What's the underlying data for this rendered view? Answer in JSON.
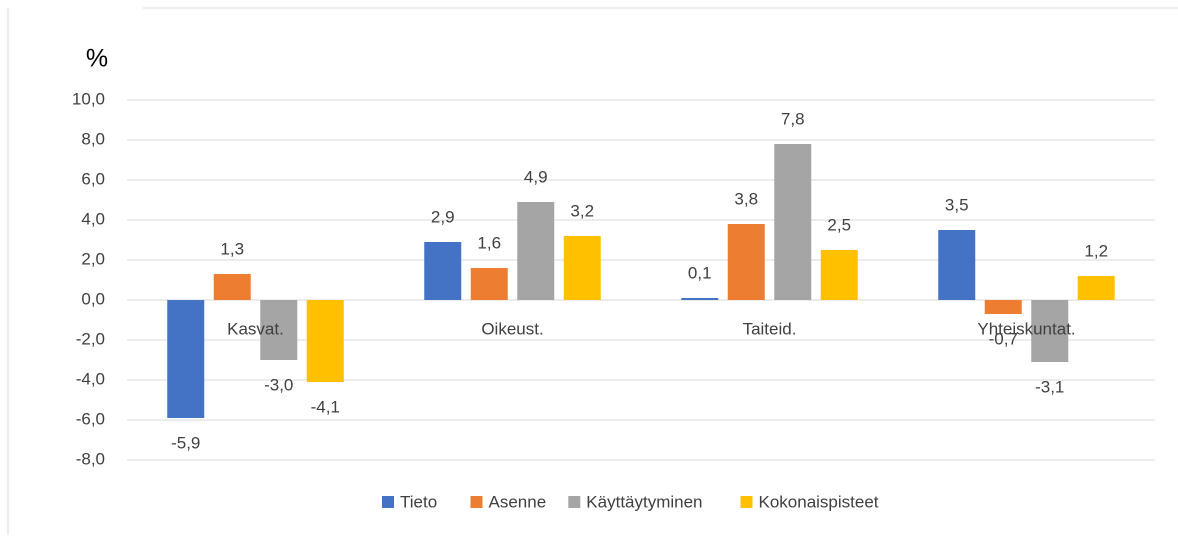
{
  "chart_data": {
    "type": "bar",
    "ylabel": "%",
    "categories": [
      "Kasvat.",
      "Oikeust.",
      "Taiteid.",
      "Yhteiskuntat."
    ],
    "series": [
      {
        "name": "Tieto",
        "color": "#4472c4",
        "values": [
          -5.9,
          2.9,
          0.1,
          3.5
        ],
        "value_labels": [
          "-5,9",
          "2,9",
          "0,1",
          "3,5"
        ]
      },
      {
        "name": "Asenne",
        "color": "#ed7d31",
        "values": [
          1.3,
          1.6,
          3.8,
          -0.7
        ],
        "value_labels": [
          "1,3",
          "1,6",
          "3,8",
          "-0,7"
        ]
      },
      {
        "name": "Käyttäytyminen",
        "color": "#a5a5a5",
        "values": [
          -3.0,
          4.9,
          7.8,
          -3.1
        ],
        "value_labels": [
          "-3,0",
          "4,9",
          "7,8",
          "-3,1"
        ]
      },
      {
        "name": "Kokonaispisteet",
        "color": "#ffc000",
        "values": [
          -4.1,
          3.2,
          2.5,
          1.2
        ],
        "value_labels": [
          "-4,1",
          "3,2",
          "2,5",
          "1,2"
        ]
      }
    ],
    "ylim": [
      -8,
      10
    ],
    "yticks": [
      {
        "value": -8,
        "label": "-8,0"
      },
      {
        "value": -6,
        "label": "-6,0"
      },
      {
        "value": -4,
        "label": "-4,0"
      },
      {
        "value": -2,
        "label": "-2,0"
      },
      {
        "value": 0,
        "label": "0,0"
      },
      {
        "value": 2,
        "label": "2,0"
      },
      {
        "value": 4,
        "label": "4,0"
      },
      {
        "value": 6,
        "label": "6,0"
      },
      {
        "value": 8,
        "label": "8,0"
      },
      {
        "value": 10,
        "label": "10,0"
      }
    ],
    "grid": true,
    "legend": "bottom"
  }
}
